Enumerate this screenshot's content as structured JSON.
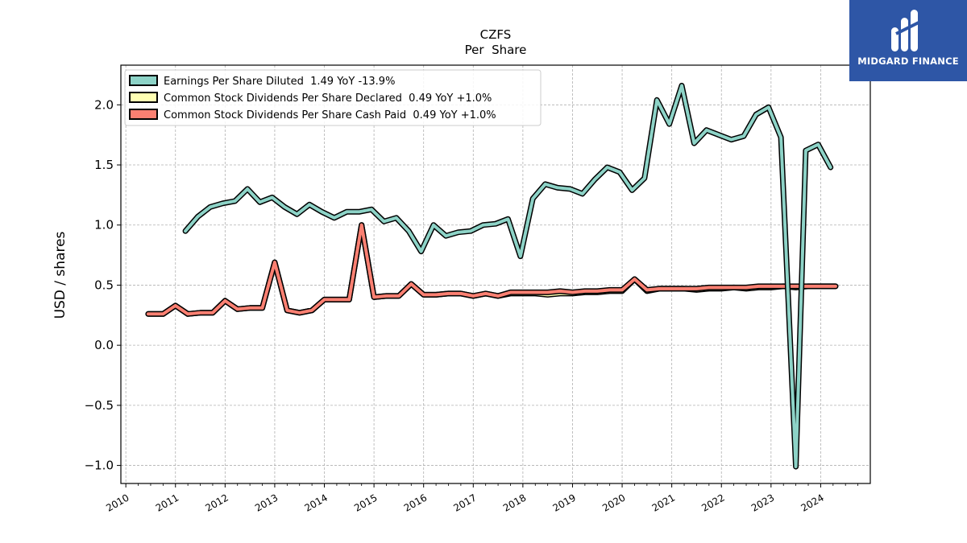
{
  "title": {
    "line1": "CZFS",
    "line2": "Per  Share"
  },
  "brand": {
    "name": "MIDGARD FINANCE",
    "icon": "midgard-logo-icon"
  },
  "colors": {
    "eps": "#8dd3c7",
    "declared": "#ffffb3",
    "paid": "#fb8072",
    "grid": "#b0b0b0",
    "outline": "#000000"
  },
  "chart_data": {
    "type": "line",
    "title": "CZFS\nPer  Share",
    "ylabel": "USD / shares",
    "xlabel": "",
    "ylim": [
      -1.15,
      2.33
    ],
    "xlim": [
      2009.9,
      2025.0
    ],
    "grid": true,
    "legend_position": "top-left",
    "yticks": [
      -1.0,
      -0.5,
      0.0,
      0.5,
      1.0,
      1.5,
      2.0
    ],
    "ytick_labels": [
      "−1.0",
      "−0.5",
      "0.0",
      "0.5",
      "1.0",
      "1.5",
      "2.0"
    ],
    "xticks": [
      2010,
      2011,
      2012,
      2013,
      2014,
      2015,
      2016,
      2017,
      2018,
      2019,
      2020,
      2021,
      2022,
      2023,
      2024
    ],
    "xtick_labels": [
      "2010",
      "2011",
      "2012",
      "2013",
      "2014",
      "2015",
      "2016",
      "2017",
      "2018",
      "2019",
      "2020",
      "2021",
      "2022",
      "2023",
      "2024"
    ],
    "series": [
      {
        "name": "Earnings Per Share Diluted",
        "legend": "Earnings Per Share Diluted  1.49 YoY -13.9%",
        "color": "#8dd3c7",
        "x": [
          2011.2,
          2011.45,
          2011.7,
          2011.95,
          2012.2,
          2012.45,
          2012.7,
          2012.95,
          2013.2,
          2013.45,
          2013.7,
          2013.95,
          2014.2,
          2014.45,
          2014.7,
          2014.95,
          2015.2,
          2015.45,
          2015.7,
          2015.95,
          2016.2,
          2016.45,
          2016.7,
          2016.95,
          2017.2,
          2017.45,
          2017.7,
          2017.95,
          2018.2,
          2018.45,
          2018.7,
          2018.95,
          2019.2,
          2019.45,
          2019.7,
          2019.95,
          2020.2,
          2020.45,
          2020.7,
          2020.95,
          2021.2,
          2021.45,
          2021.7,
          2021.95,
          2022.2,
          2022.45,
          2022.7,
          2022.95,
          2023.2,
          2023.5,
          2023.7,
          2023.95,
          2024.2
        ],
        "y": [
          0.95,
          1.07,
          1.15,
          1.18,
          1.2,
          1.3,
          1.19,
          1.23,
          1.15,
          1.09,
          1.17,
          1.11,
          1.06,
          1.11,
          1.11,
          1.13,
          1.03,
          1.06,
          0.95,
          0.78,
          1.0,
          0.91,
          0.94,
          0.95,
          1.0,
          1.01,
          1.05,
          0.74,
          1.22,
          1.34,
          1.31,
          1.3,
          1.26,
          1.38,
          1.48,
          1.44,
          1.29,
          1.39,
          2.04,
          1.84,
          2.16,
          1.68,
          1.79,
          1.75,
          1.71,
          1.74,
          1.92,
          1.98,
          1.73,
          -1.01,
          1.62,
          1.67,
          1.48
        ]
      },
      {
        "name": "Common Stock Dividends Per Share Declared",
        "legend": "Common Stock Dividends Per Share Declared  0.49 YoY +1.0%",
        "color": "#ffffb3",
        "x": [
          2010.45,
          2010.75,
          2011.0,
          2011.25,
          2011.5,
          2011.75,
          2012.0,
          2012.25,
          2012.5,
          2012.75,
          2013.0,
          2013.25,
          2013.5,
          2013.75,
          2014.0,
          2014.25,
          2014.5,
          2014.75,
          2015.0,
          2015.25,
          2015.5,
          2015.75,
          2016.0,
          2016.25,
          2016.5,
          2016.75,
          2017.0,
          2017.25,
          2017.5,
          2017.75,
          2018.0,
          2018.25,
          2018.5,
          2018.75,
          2019.0,
          2019.25,
          2019.5,
          2019.75,
          2020.0,
          2020.25,
          2020.5,
          2020.75,
          2021.0,
          2021.25,
          2021.5,
          2021.75,
          2022.0,
          2022.25,
          2022.5,
          2022.75,
          2023.0,
          2023.25,
          2023.5,
          2023.75,
          2024.0,
          2024.3
        ],
        "y": [
          0.26,
          0.26,
          0.33,
          0.26,
          0.27,
          0.27,
          0.37,
          0.3,
          0.31,
          0.31,
          0.69,
          0.29,
          0.27,
          0.29,
          0.38,
          0.38,
          0.38,
          1.0,
          0.4,
          0.41,
          0.41,
          0.51,
          0.42,
          0.42,
          0.43,
          0.43,
          0.41,
          0.43,
          0.41,
          0.43,
          0.43,
          0.43,
          0.42,
          0.43,
          0.43,
          0.44,
          0.44,
          0.45,
          0.45,
          0.55,
          0.45,
          0.47,
          0.47,
          0.47,
          0.46,
          0.47,
          0.47,
          0.48,
          0.47,
          0.48,
          0.48,
          0.49,
          0.48,
          0.49,
          0.49,
          0.49
        ]
      },
      {
        "name": "Common Stock Dividends Per Share Cash Paid",
        "legend": "Common Stock Dividends Per Share Cash Paid  0.49 YoY +1.0%",
        "color": "#fb8072",
        "x": [
          2010.45,
          2010.75,
          2011.0,
          2011.25,
          2011.5,
          2011.75,
          2012.0,
          2012.25,
          2012.5,
          2012.75,
          2013.0,
          2013.25,
          2013.5,
          2013.75,
          2014.0,
          2014.25,
          2014.5,
          2014.75,
          2015.0,
          2015.25,
          2015.5,
          2015.75,
          2016.0,
          2016.25,
          2016.5,
          2016.75,
          2017.0,
          2017.25,
          2017.5,
          2017.75,
          2018.0,
          2018.25,
          2018.5,
          2018.75,
          2019.0,
          2019.25,
          2019.5,
          2019.75,
          2020.0,
          2020.25,
          2020.5,
          2020.75,
          2021.0,
          2021.25,
          2021.5,
          2021.75,
          2022.0,
          2022.25,
          2022.5,
          2022.75,
          2023.0,
          2023.25,
          2023.5,
          2023.75,
          2024.0,
          2024.3
        ],
        "y": [
          0.26,
          0.26,
          0.33,
          0.26,
          0.27,
          0.27,
          0.37,
          0.3,
          0.31,
          0.31,
          0.69,
          0.29,
          0.27,
          0.29,
          0.38,
          0.38,
          0.38,
          1.0,
          0.4,
          0.41,
          0.41,
          0.51,
          0.42,
          0.42,
          0.43,
          0.43,
          0.41,
          0.43,
          0.41,
          0.44,
          0.44,
          0.44,
          0.44,
          0.45,
          0.44,
          0.45,
          0.45,
          0.46,
          0.46,
          0.55,
          0.46,
          0.47,
          0.47,
          0.47,
          0.47,
          0.48,
          0.48,
          0.48,
          0.48,
          0.49,
          0.49,
          0.49,
          0.49,
          0.49,
          0.49,
          0.49
        ]
      }
    ]
  }
}
